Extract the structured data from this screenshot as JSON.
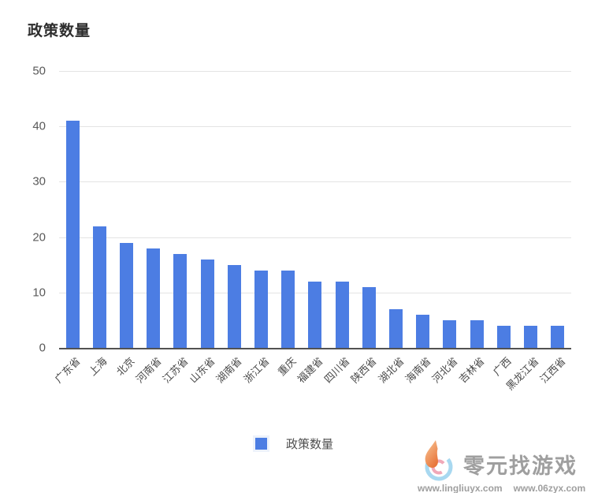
{
  "title": "政策数量",
  "chart_data": {
    "type": "bar",
    "title": "政策数量",
    "categories": [
      "广东省",
      "上海",
      "北京",
      "河南省",
      "江苏省",
      "山东省",
      "湖南省",
      "浙江省",
      "重庆",
      "福建省",
      "四川省",
      "陕西省",
      "湖北省",
      "海南省",
      "河北省",
      "吉林省",
      "广西",
      "黑龙江省",
      "江西省"
    ],
    "values": [
      41,
      22,
      19,
      18,
      17,
      16,
      15,
      14,
      14,
      12,
      12,
      11,
      7,
      6,
      5,
      5,
      4,
      4,
      4
    ],
    "xlabel": "",
    "ylabel": "",
    "ylim": [
      0,
      50
    ],
    "yticks": [
      0,
      10,
      20,
      30,
      40,
      50
    ],
    "grid": true,
    "legend": [
      "政策数量"
    ],
    "legend_position": "bottom"
  },
  "legend": {
    "label": "政策数量"
  },
  "watermark": {
    "brand": "零元找游戏",
    "url1": "www.lingliuyx.com",
    "url2": "www.06zyx.com"
  },
  "colors": {
    "bar": "#4c7de3",
    "gridline": "#e4e4e4",
    "axis_line": "#525252",
    "tick_text": "#595959",
    "label_text": "#4a4a4a",
    "watermark_text": "#9f9f9f",
    "flame_orange": "#e8763c",
    "swirl_blue": "#a8d8f0",
    "swirl_pink": "#f0a8b8"
  }
}
